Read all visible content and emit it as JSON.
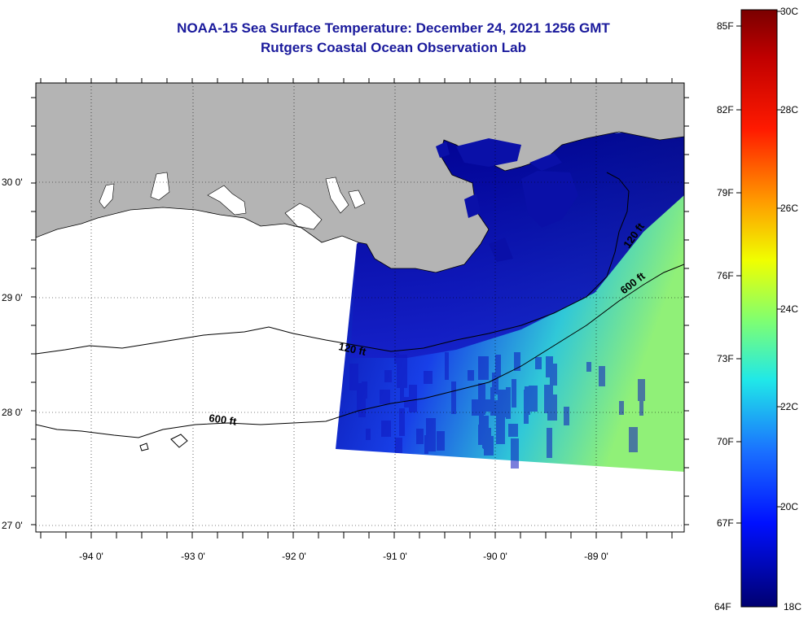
{
  "title_line1": "NOAA-15 Sea Surface Temperature:  December 24, 2021 1256 GMT",
  "title_line2": "Rutgers Coastal Ocean Observation Lab",
  "map": {
    "lon_labels": [
      "-94 0'",
      "-93 0'",
      "-92 0'",
      "-91 0'",
      "-90 0'",
      "-89 0'"
    ],
    "lat_labels": [
      "30 0'",
      "29 0'",
      "28 0'",
      "27 0'"
    ],
    "contour_labels": [
      "120 ft",
      "600 ft",
      "120 ft",
      "600 ft"
    ],
    "colors": {
      "land": "#b4b4b4",
      "frame": "#000000"
    }
  },
  "colorbar": {
    "fahrenheit_labels": [
      "85F",
      "82F",
      "79F",
      "76F",
      "73F",
      "70F",
      "67F",
      "64F"
    ],
    "celsius_labels": [
      "30C",
      "28C",
      "26C",
      "24C",
      "22C",
      "20C",
      "18C"
    ],
    "stops": [
      "#8b0000",
      "#ff0000",
      "#ff8000",
      "#ffff00",
      "#80ff80",
      "#00e0ff",
      "#0080ff",
      "#0000ff",
      "#00007f"
    ]
  }
}
